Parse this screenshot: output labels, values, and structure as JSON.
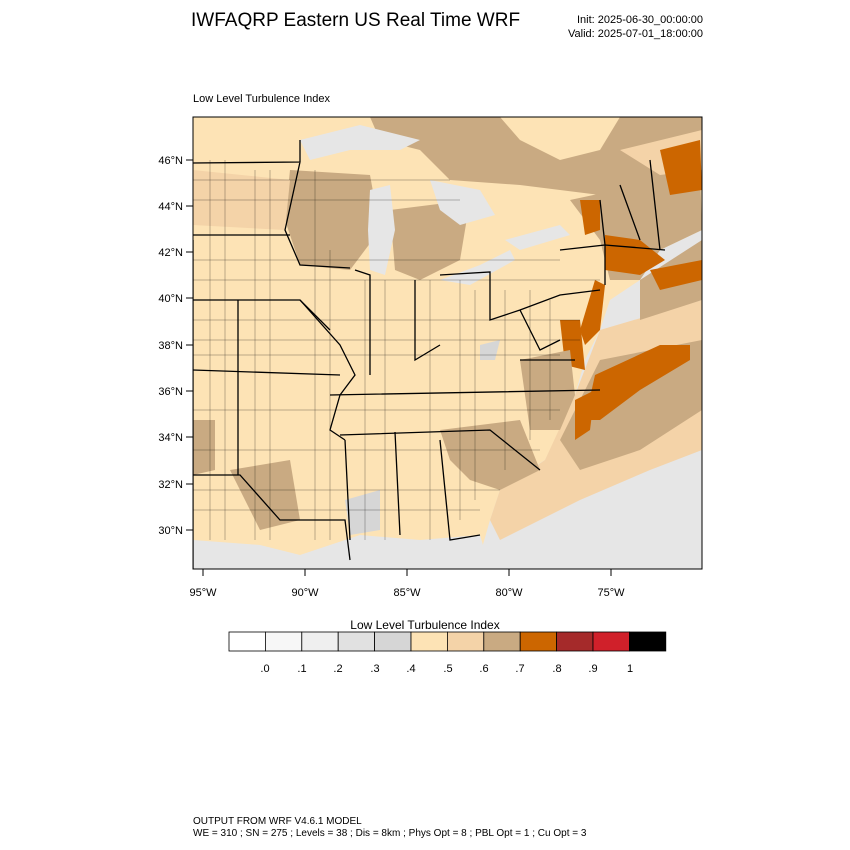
{
  "header": {
    "title": "IWFAQRP Eastern US Real Time WRF",
    "init": "Init: 2025-06-30_00:00:00",
    "valid": "Valid: 2025-07-01_18:00:00"
  },
  "plot": {
    "subtitle": "Low Level Turbulence Index",
    "lat_labels": [
      "46°N",
      "44°N",
      "42°N",
      "40°N",
      "38°N",
      "36°N",
      "34°N",
      "32°N",
      "30°N"
    ],
    "lon_labels": [
      "95°W",
      "90°W",
      "85°W",
      "80°W",
      "75°W"
    ]
  },
  "colorbar": {
    "title": "Low Level Turbulence Index",
    "labels": [
      ".0",
      ".1",
      ".2",
      ".3",
      ".4",
      ".5",
      ".6",
      ".7",
      ".8",
      ".9",
      "1"
    ],
    "colors": [
      "#ffffff",
      "#f7f7f7",
      "#efefef",
      "#e1e1e1",
      "#d6d6d6",
      "#fde3b5",
      "#f4d3a8",
      "#c9aa82",
      "#cc6600",
      "#a52a2a",
      "#d0202a",
      "#000000"
    ]
  },
  "footer": {
    "line1": "OUTPUT FROM WRF V4.6.1 MODEL",
    "line2": "WE = 310 ; SN = 275 ; Levels = 38 ; Dis = 8km ; Phys Opt = 8 ; PBL Opt = 1 ; Cu Opt = 3"
  }
}
